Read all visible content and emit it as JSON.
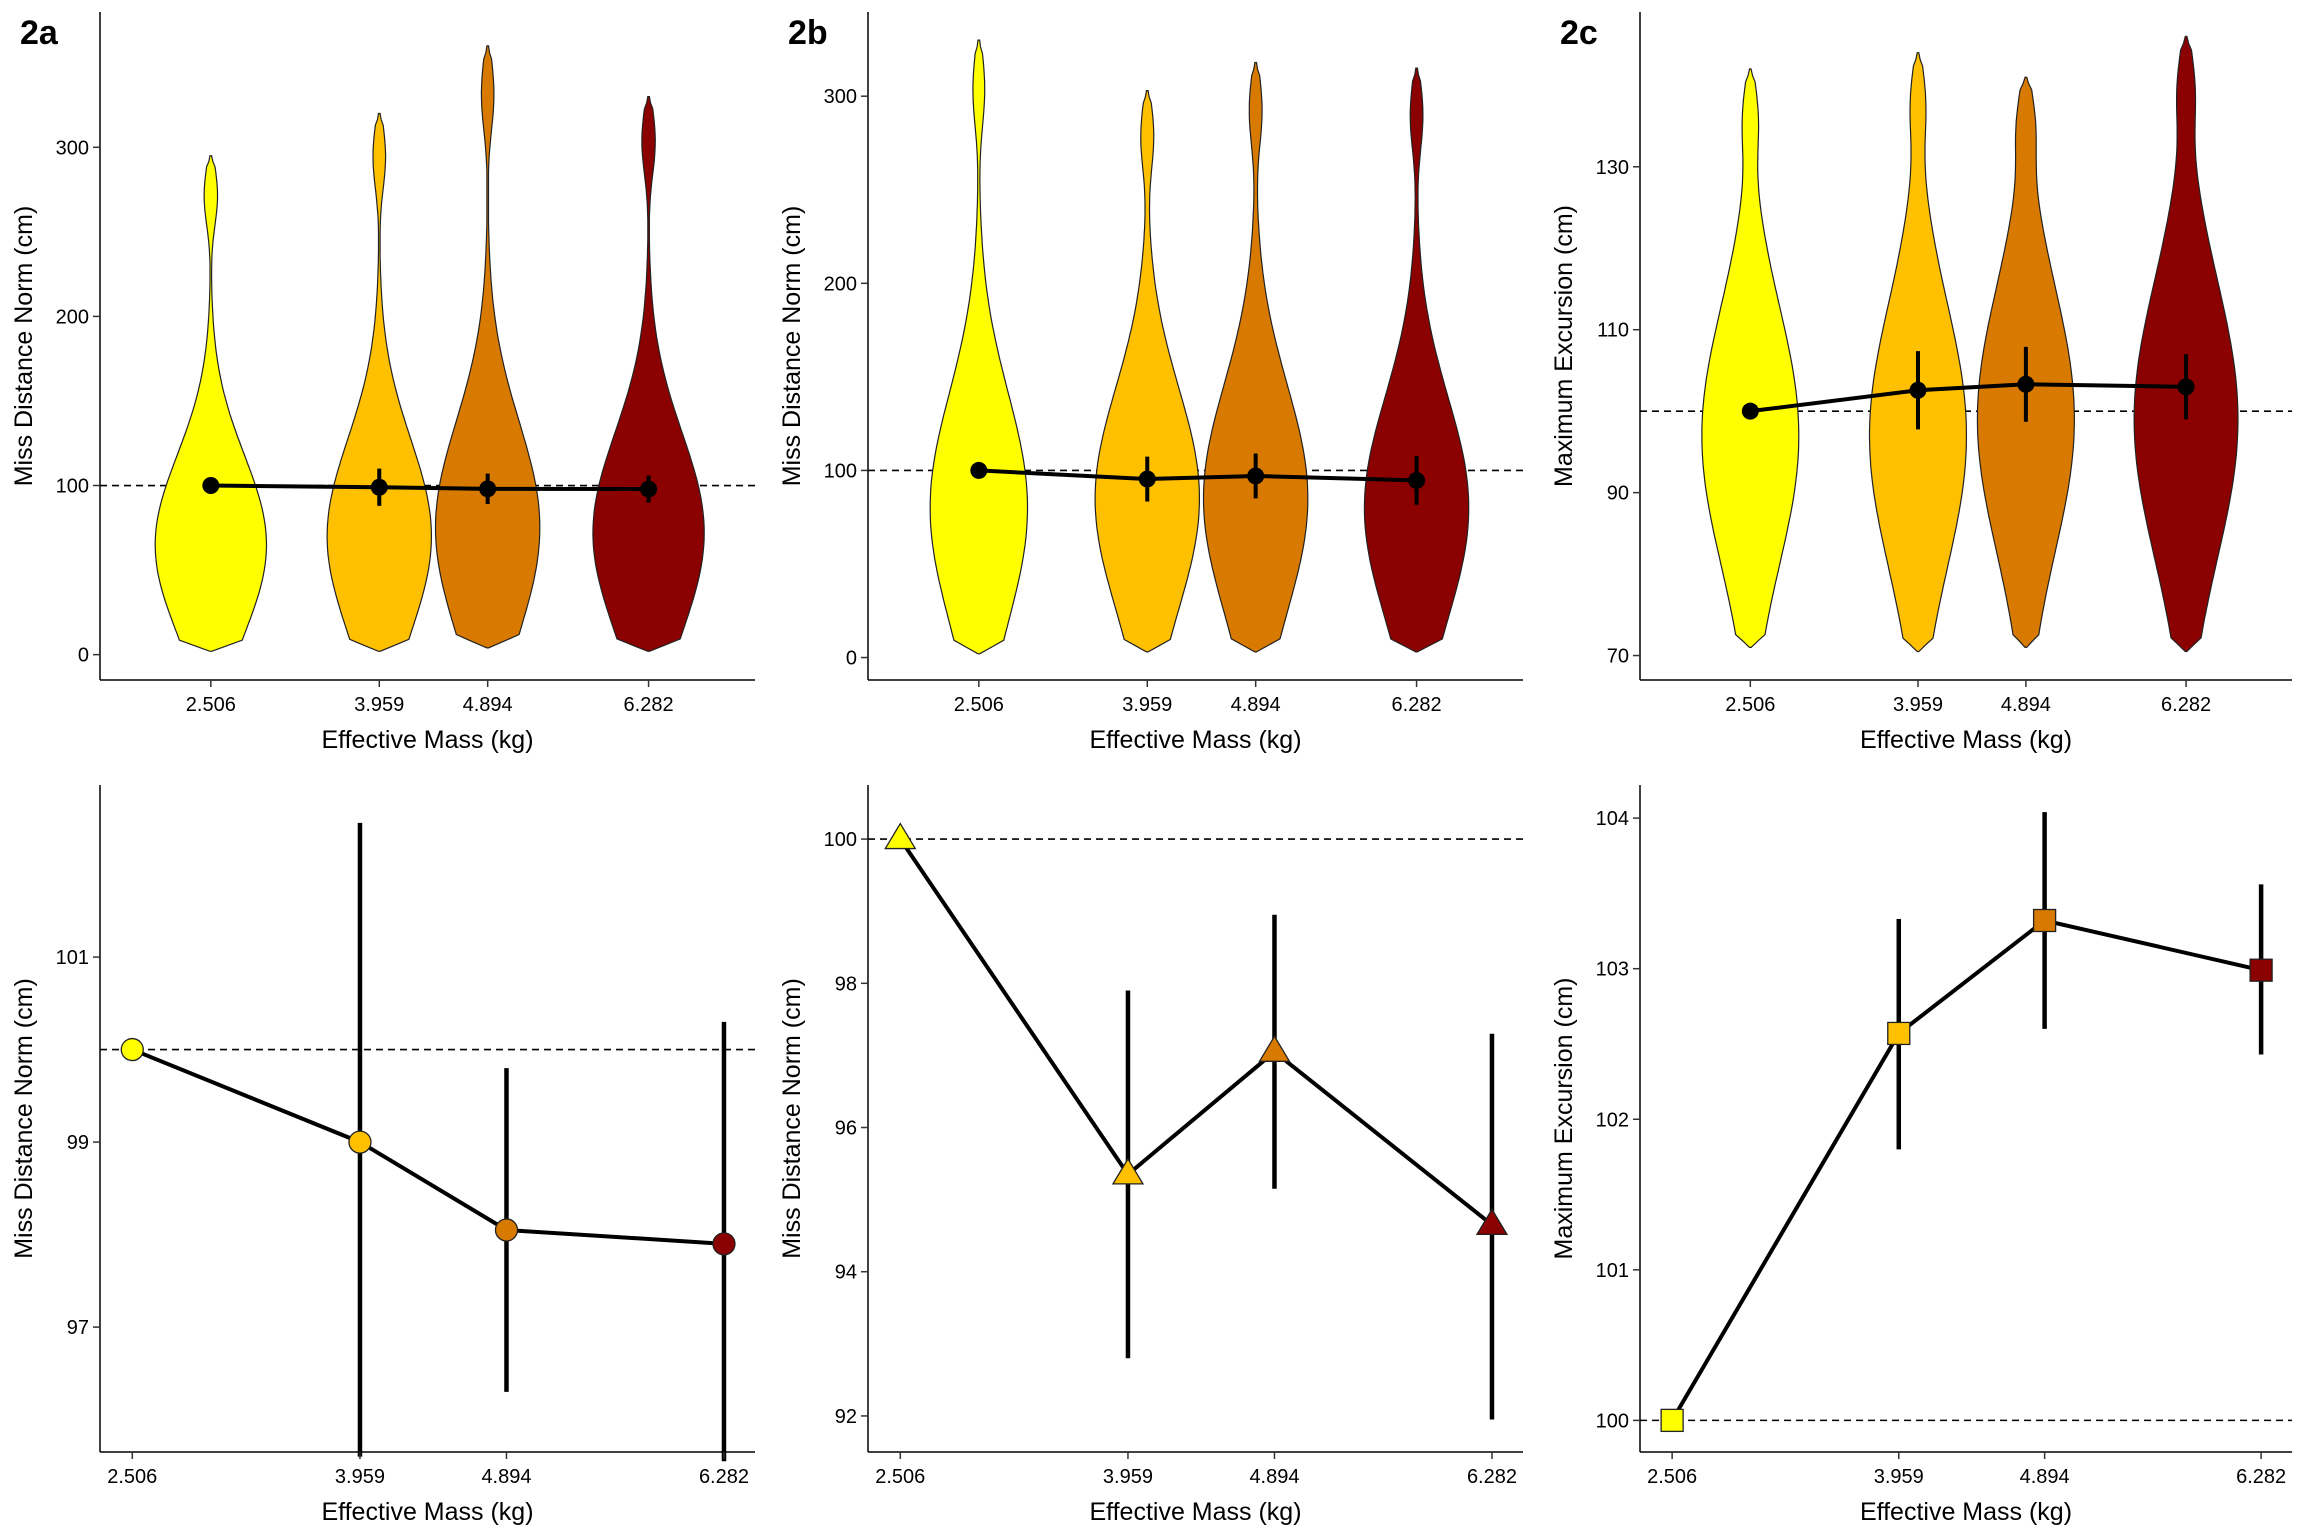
{
  "colors": {
    "yellow": "#FFFF00",
    "gold": "#FFC000",
    "orange": "#D97A00",
    "darkred": "#8B0000",
    "line": "#000000",
    "reference_line": "#000000"
  },
  "panel_labels": [
    "2a",
    "2b",
    "2c"
  ],
  "chart_data": [
    {
      "id": "2a-top",
      "type": "violin",
      "panel_label": "2a",
      "title": "",
      "xlabel": "Effective Mass (kg)",
      "ylabel": "Miss Distance Norm (cm)",
      "categories": [
        "2.506",
        "3.959",
        "4.894",
        "6.282"
      ],
      "x": [
        2.506,
        3.959,
        4.894,
        6.282
      ],
      "xlim": [
        1.55,
        7.2
      ],
      "ylim": [
        -15,
        380
      ],
      "yticks": [
        0,
        100,
        200,
        300
      ],
      "reference_y": 100,
      "violin_colors": [
        "yellow",
        "gold",
        "orange",
        "darkred"
      ],
      "violin_range": [
        [
          2,
          295
        ],
        [
          2,
          320
        ],
        [
          4,
          360
        ],
        [
          2,
          330
        ]
      ],
      "violin_peak": [
        65,
        70,
        75,
        72
      ],
      "violin_maxwidth": [
        0.48,
        0.45,
        0.45,
        0.48
      ],
      "means": [
        100,
        99,
        98.05,
        97.9
      ],
      "error": [
        0,
        11,
        9,
        8
      ]
    },
    {
      "id": "2b-top",
      "type": "violin",
      "panel_label": "2b",
      "title": "",
      "xlabel": "Effective Mass (kg)",
      "ylabel": "Miss Distance Norm (cm)",
      "categories": [
        "2.506",
        "3.959",
        "4.894",
        "6.282"
      ],
      "x": [
        2.506,
        3.959,
        4.894,
        6.282
      ],
      "xlim": [
        1.55,
        7.2
      ],
      "ylim": [
        -12,
        345
      ],
      "yticks": [
        0,
        100,
        200,
        300
      ],
      "reference_y": 100,
      "violin_colors": [
        "yellow",
        "gold",
        "orange",
        "darkred"
      ],
      "violin_range": [
        [
          2,
          330
        ],
        [
          3,
          303
        ],
        [
          3,
          318
        ],
        [
          3,
          315
        ]
      ],
      "violin_peak": [
        80,
        85,
        85,
        80
      ],
      "violin_maxwidth": [
        0.42,
        0.45,
        0.45,
        0.45
      ],
      "means": [
        100,
        95.4,
        97.05,
        94.65
      ],
      "error": [
        0,
        12,
        12,
        13
      ]
    },
    {
      "id": "2c-top",
      "type": "violin",
      "panel_label": "2c",
      "title": "",
      "xlabel": "Effective Mass (kg)",
      "ylabel": "Maximum Excursion (cm)",
      "categories": [
        "2.506",
        "3.959",
        "4.894",
        "6.282"
      ],
      "x": [
        2.506,
        3.959,
        4.894,
        6.282
      ],
      "xlim": [
        1.55,
        7.2
      ],
      "ylim": [
        67,
        149
      ],
      "yticks": [
        70,
        90,
        110,
        130
      ],
      "reference_y": 100,
      "violin_colors": [
        "yellow",
        "gold",
        "orange",
        "darkred"
      ],
      "violin_range": [
        [
          71,
          142
        ],
        [
          70.5,
          144
        ],
        [
          71,
          141
        ],
        [
          70.5,
          146
        ]
      ],
      "violin_peak": [
        97,
        97,
        99,
        99
      ],
      "violin_maxwidth": [
        0.42,
        0.42,
        0.42,
        0.45
      ],
      "means": [
        100,
        102.57,
        103.3,
        102.99
      ],
      "error": [
        0,
        4.8,
        4.6,
        4.0
      ]
    },
    {
      "id": "2a-bottom",
      "type": "line",
      "xlabel": "Effective Mass (kg)",
      "ylabel": "Miss Distance Norm (cm)",
      "categories": [
        "2.506",
        "3.959",
        "4.894",
        "6.282"
      ],
      "x": [
        2.506,
        3.959,
        4.894,
        6.282
      ],
      "xlim": [
        2.3,
        6.48
      ],
      "ylim": [
        95.65,
        102.86
      ],
      "yticks": [
        97,
        99,
        101
      ],
      "reference_y": 100,
      "marker": "circle",
      "marker_colors": [
        "yellow",
        "gold",
        "orange",
        "darkred"
      ],
      "series": [
        {
          "values": [
            100,
            99.0,
            98.05,
            97.9
          ],
          "ci_low": [
            100,
            95.6,
            96.3,
            95.55
          ],
          "ci_high": [
            100,
            102.45,
            99.8,
            100.3
          ]
        }
      ]
    },
    {
      "id": "2b-bottom",
      "type": "line",
      "xlabel": "Effective Mass (kg)",
      "ylabel": "Miss Distance Norm (cm)",
      "categories": [
        "2.506",
        "3.959",
        "4.894",
        "6.282"
      ],
      "x": [
        2.506,
        3.959,
        4.894,
        6.282
      ],
      "xlim": [
        2.3,
        6.48
      ],
      "ylim": [
        91.5,
        100.75
      ],
      "yticks": [
        92,
        94,
        96,
        98,
        100
      ],
      "reference_y": 100,
      "marker": "triangle",
      "marker_colors": [
        "yellow",
        "gold",
        "orange",
        "darkred"
      ],
      "series": [
        {
          "values": [
            100,
            95.35,
            97.05,
            94.65
          ],
          "ci_low": [
            100,
            92.8,
            95.15,
            91.95
          ],
          "ci_high": [
            100,
            97.9,
            98.95,
            97.3
          ]
        }
      ]
    },
    {
      "id": "2c-bottom",
      "type": "line",
      "xlabel": "Effective Mass (kg)",
      "ylabel": "Maximum Excursion (cm)",
      "categories": [
        "2.506",
        "3.959",
        "4.894",
        "6.282"
      ],
      "x": [
        2.506,
        3.959,
        4.894,
        6.282
      ],
      "xlim": [
        2.3,
        6.48
      ],
      "ylim": [
        99.79,
        104.22
      ],
      "yticks": [
        100,
        101,
        102,
        103,
        104
      ],
      "reference_y": 100,
      "marker": "square",
      "marker_colors": [
        "yellow",
        "gold",
        "orange",
        "darkred"
      ],
      "series": [
        {
          "values": [
            100,
            102.57,
            103.32,
            102.99
          ],
          "ci_low": [
            100,
            101.8,
            102.6,
            102.43
          ],
          "ci_high": [
            100,
            103.33,
            104.04,
            103.56
          ]
        }
      ]
    }
  ]
}
